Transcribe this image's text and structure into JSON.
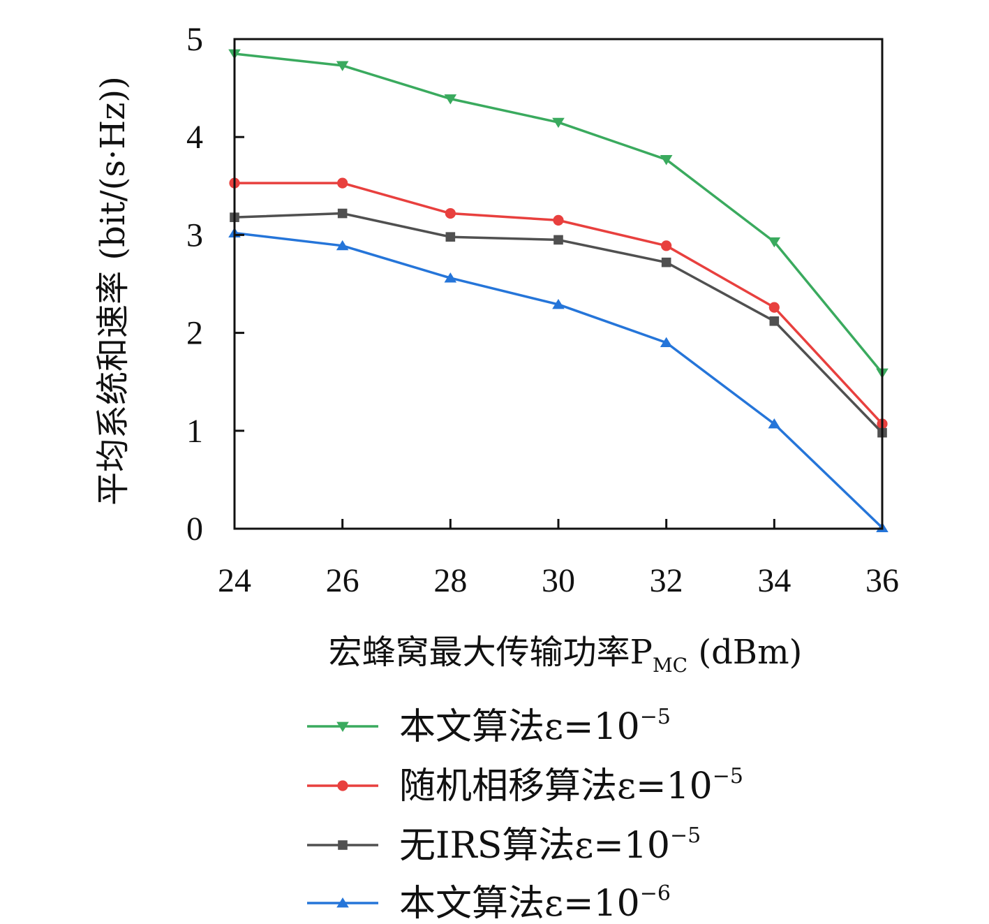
{
  "chart_data": {
    "type": "line",
    "x": [
      24,
      26,
      28,
      30,
      32,
      34,
      36
    ],
    "xlim": [
      24,
      36
    ],
    "ylim": [
      0,
      5
    ],
    "xticks": [
      "24",
      "26",
      "28",
      "30",
      "32",
      "34",
      "36"
    ],
    "yticks": [
      "0",
      "1",
      "2",
      "3",
      "4",
      "5"
    ],
    "xlabel": "宏蜂窝最大传输功率P",
    "xlabel_subscript": "MC",
    "xlabel_unit": " (dBm)",
    "ylabel": "平均系统和速率 (bit/(s·Hz))",
    "grid": false,
    "legend_position": "bottom",
    "series": [
      {
        "name": "本文算法ε=10",
        "exponent": "−5",
        "marker": "triangle-down",
        "color": "#3aaa5e",
        "values": [
          4.85,
          4.73,
          4.39,
          4.15,
          3.77,
          2.93,
          1.59
        ]
      },
      {
        "name": "随机相移算法ε=10",
        "exponent": "−5",
        "marker": "circle",
        "color": "#e8403e",
        "values": [
          3.53,
          3.53,
          3.22,
          3.15,
          2.89,
          2.26,
          1.07
        ]
      },
      {
        "name": "无IRS算法ε=10",
        "exponent": "−5",
        "marker": "square",
        "color": "#505050",
        "values": [
          3.18,
          3.22,
          2.98,
          2.95,
          2.72,
          2.12,
          0.98
        ]
      },
      {
        "name": "本文算法ε=10",
        "exponent": "−6",
        "marker": "triangle-up",
        "color": "#2575d9",
        "values": [
          3.02,
          2.89,
          2.56,
          2.29,
          1.9,
          1.07,
          0.01
        ]
      }
    ]
  }
}
